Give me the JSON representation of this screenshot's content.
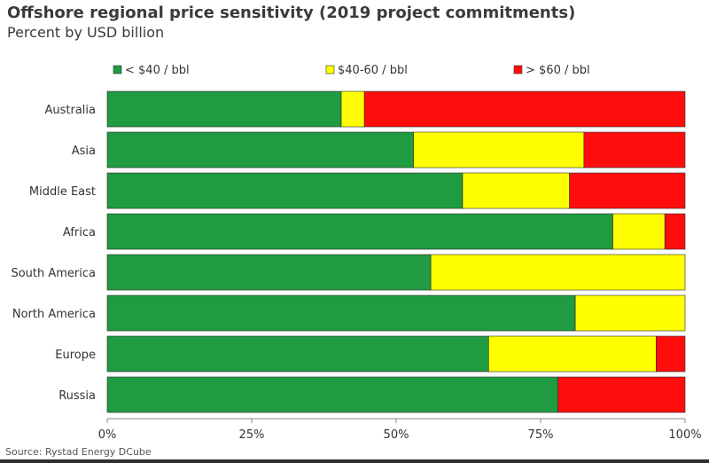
{
  "chart_data": {
    "type": "bar",
    "orientation": "horizontal",
    "stacked": true,
    "title": "Offshore regional price sensitivity (2019 project commitments)",
    "subtitle": "Percent by USD billion",
    "source": "Source: Rystad Energy DCube",
    "categories": [
      "Australia",
      "Asia",
      "Middle East",
      "Africa",
      "South America",
      "North America",
      "Europe",
      "Russia"
    ],
    "series": [
      {
        "name": "< $40 / bbl",
        "color": "#1f9b41",
        "values": [
          40.5,
          53,
          61.5,
          87.5,
          56,
          81,
          66,
          78
        ]
      },
      {
        "name": "$40-60 / bbl",
        "color": "#ffff00",
        "values": [
          4,
          29.5,
          18.5,
          9,
          44,
          19,
          29,
          0
        ]
      },
      {
        "name": "> $60 / bbl",
        "color": "#ff0d0d",
        "values": [
          55.5,
          17.5,
          20,
          3.5,
          0,
          0,
          5,
          22
        ]
      }
    ],
    "xlim": [
      0,
      100
    ],
    "xticks": [
      "0%",
      "25%",
      "50%",
      "75%",
      "100%"
    ],
    "legend_position": "top",
    "grid": false
  }
}
